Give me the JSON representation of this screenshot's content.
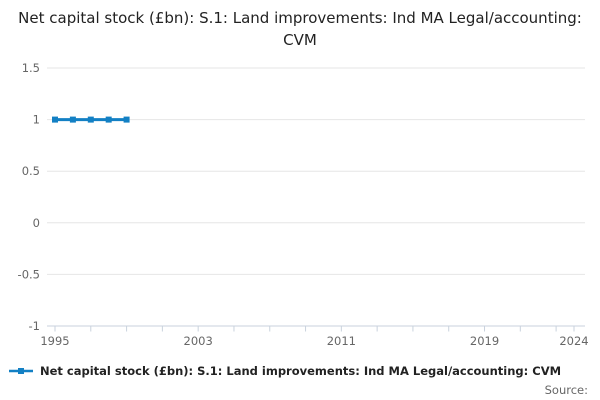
{
  "title": {
    "text": "Net capital stock (£bn): S.1: Land improvements: Ind MA Legal/accounting: CVM"
  },
  "legend": {
    "label": "Net capital stock (£bn): S.1: Land improvements: Ind MA Legal/accounting: CVM",
    "icon": "line-with-square-marker-icon"
  },
  "source": {
    "label": "Source:"
  },
  "colors": {
    "series": "#1380c4",
    "grid": "#e6e6e6",
    "axis": "#c9d2dd",
    "tick_label": "#666666",
    "title_text": "#222222"
  },
  "chart_data": {
    "type": "line",
    "title": "Net capital stock (£bn): S.1: Land improvements: Ind MA Legal/accounting: CVM",
    "series": [
      {
        "name": "Net capital stock (£bn): S.1: Land improvements: Ind MA Legal/accounting: CVM",
        "x": [
          1995,
          1996,
          1997,
          1998,
          1999
        ],
        "values": [
          1,
          1,
          1,
          1,
          1
        ],
        "color": "#1380c4",
        "marker": "square",
        "line_width": 3
      }
    ],
    "xlabel": "",
    "ylabel": "",
    "xlim": [
      1995,
      2024
    ],
    "ylim": [
      -1,
      1.5
    ],
    "y_ticks": [
      1.5,
      1,
      0.5,
      0,
      -0.5,
      -1
    ],
    "y_tick_labels": [
      "1.5",
      "1",
      "0.5",
      "0",
      "-0.5",
      "-1"
    ],
    "x_labeled_ticks": [
      1995,
      2003,
      2011,
      2019,
      2024
    ],
    "x_minor_tick_step": 2,
    "grid": true,
    "legend_position": "bottom-left"
  }
}
